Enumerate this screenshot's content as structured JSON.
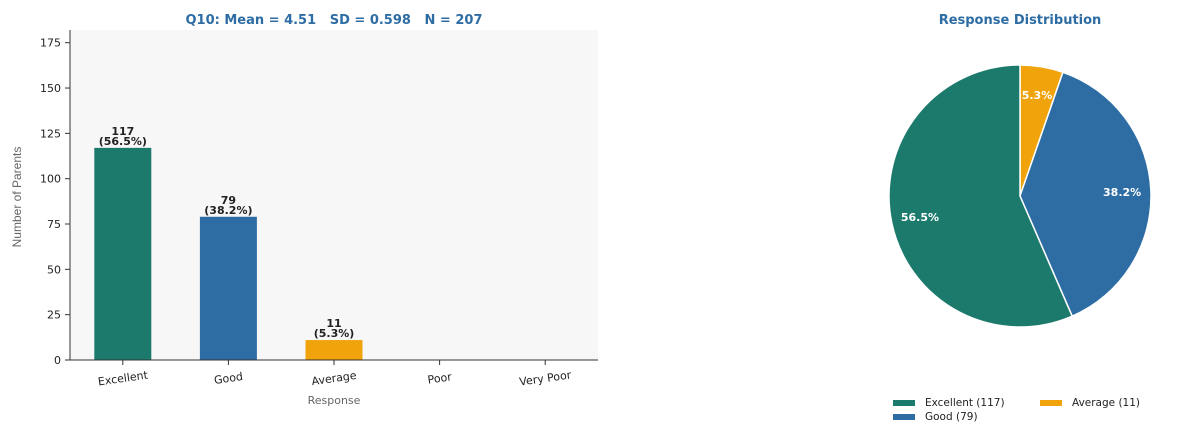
{
  "chart_data": [
    {
      "type": "bar",
      "title": "Q10: Mean = 4.51   SD = 0.598   N = 207",
      "xlabel": "Response",
      "ylabel": "Number of Parents",
      "categories": [
        "Excellent",
        "Good",
        "Average",
        "Poor",
        "Very Poor"
      ],
      "values": [
        117,
        79,
        11,
        0,
        0
      ],
      "value_labels": [
        "117\n(56.5%)",
        "79\n(38.2%)",
        "11\n(5.3%)",
        "",
        ""
      ],
      "colors": [
        "#1c7a6c",
        "#2e6da3",
        "#f0a30a",
        "#999999",
        "#999999"
      ],
      "ylim": [
        0,
        182
      ],
      "yticks": [
        0,
        25,
        50,
        75,
        100,
        125,
        150,
        175
      ],
      "grid": false,
      "background": "#f7f7f7",
      "title_color": "#2e6da3"
    },
    {
      "type": "pie",
      "title": "Response Distribution",
      "title_color": "#2e6da3",
      "slices": [
        {
          "label": "Average",
          "value": 11,
          "pct": "5.3%",
          "color": "#f0a30a"
        },
        {
          "label": "Good",
          "value": 79,
          "pct": "38.2%",
          "color": "#2e6da3"
        },
        {
          "label": "Excellent",
          "value": 117,
          "pct": "56.5%",
          "color": "#1c7a6c"
        }
      ],
      "legend": {
        "placement": "bottom",
        "entries": [
          {
            "label": "Excellent (117)",
            "color": "#1c7a6c"
          },
          {
            "label": "Average (11)",
            "color": "#f0a30a"
          },
          {
            "label": "Good (79)",
            "color": "#2e6da3"
          }
        ]
      }
    }
  ]
}
